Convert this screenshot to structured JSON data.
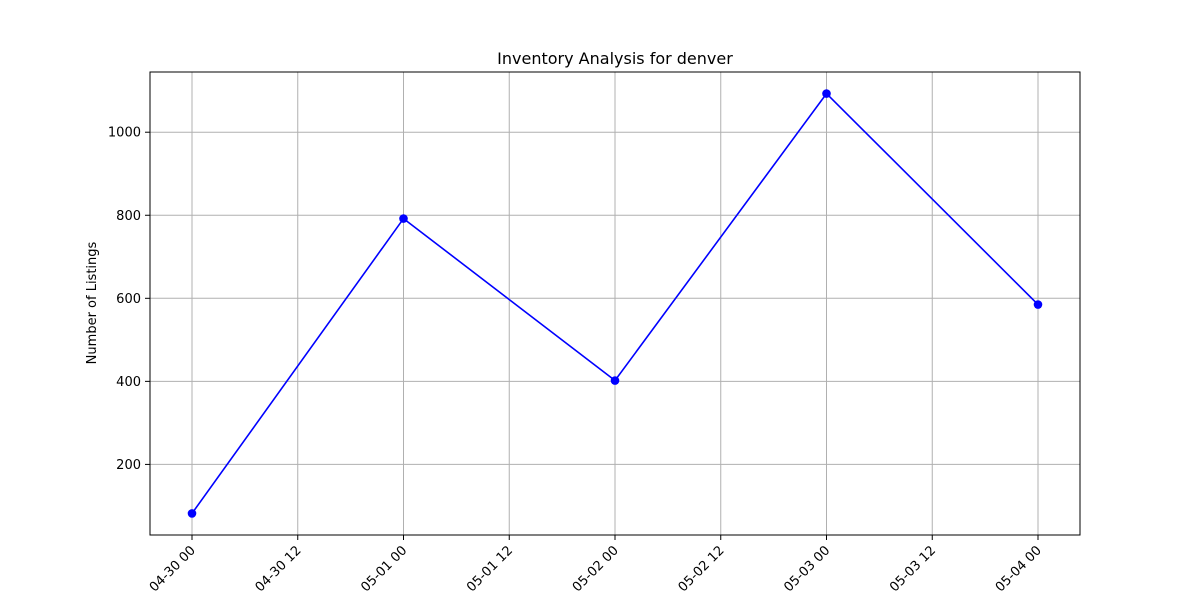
{
  "chart_data": {
    "type": "line",
    "title": "Inventory Analysis for denver",
    "xlabel": "",
    "ylabel": "Number of Listings",
    "x_ticks": [
      "04-30 00",
      "04-30 12",
      "05-01 00",
      "05-01 12",
      "05-02 00",
      "05-02 12",
      "05-03 00",
      "05-03 12",
      "05-04 00"
    ],
    "y_ticks": [
      200,
      400,
      600,
      800,
      1000
    ],
    "x": [
      "04-30 00",
      "05-01 00",
      "05-02 00",
      "05-03 00",
      "05-04 00"
    ],
    "series": [
      {
        "values": [
          82,
          792,
          402,
          1093,
          585
        ],
        "color": "#0000ff",
        "marker": "circle"
      }
    ],
    "ylim": [
      30,
      1145
    ],
    "grid": true
  }
}
